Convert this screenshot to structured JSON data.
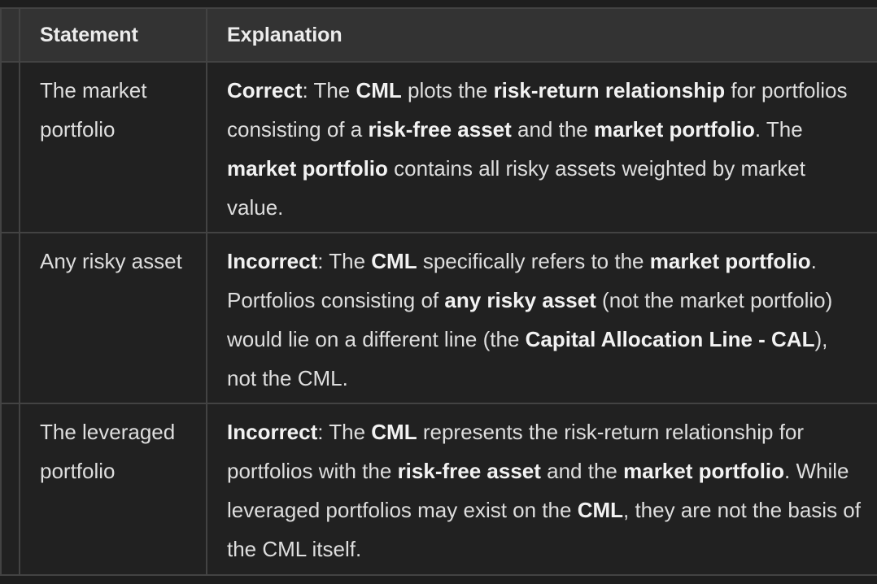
{
  "table": {
    "headers": {
      "statement": "Statement",
      "explanation": "Explanation"
    },
    "rows": [
      {
        "statement": "The market portfolio",
        "explanation": [
          {
            "t": "Correct",
            "b": true
          },
          {
            "t": ": The ",
            "b": false
          },
          {
            "t": "CML",
            "b": true
          },
          {
            "t": " plots the ",
            "b": false
          },
          {
            "t": "risk-return relationship",
            "b": true
          },
          {
            "t": " for portfolios consisting of a ",
            "b": false
          },
          {
            "t": "risk-free asset",
            "b": true
          },
          {
            "t": " and the ",
            "b": false
          },
          {
            "t": "market portfolio",
            "b": true
          },
          {
            "t": ". The ",
            "b": false
          },
          {
            "t": "market portfolio",
            "b": true
          },
          {
            "t": " contains all risky assets weighted by market value.",
            "b": false
          }
        ]
      },
      {
        "statement": "Any risky asset",
        "explanation": [
          {
            "t": "Incorrect",
            "b": true
          },
          {
            "t": ": The ",
            "b": false
          },
          {
            "t": "CML",
            "b": true
          },
          {
            "t": " specifically refers to the ",
            "b": false
          },
          {
            "t": "market portfolio",
            "b": true
          },
          {
            "t": ". Portfolios consisting of ",
            "b": false
          },
          {
            "t": "any risky asset",
            "b": true
          },
          {
            "t": " (not the market portfolio) would lie on a different line (the ",
            "b": false
          },
          {
            "t": "Capital Allocation Line - CAL",
            "b": true
          },
          {
            "t": "), not the CML.",
            "b": false
          }
        ]
      },
      {
        "statement": "The leveraged portfolio",
        "explanation": [
          {
            "t": "Incorrect",
            "b": true
          },
          {
            "t": ": The ",
            "b": false
          },
          {
            "t": "CML",
            "b": true
          },
          {
            "t": " represents the risk-return relationship for portfolios with the ",
            "b": false
          },
          {
            "t": "risk-free asset",
            "b": true
          },
          {
            "t": " and the ",
            "b": false
          },
          {
            "t": "market portfolio",
            "b": true
          },
          {
            "t": ". While leveraged portfolios may exist on the ",
            "b": false
          },
          {
            "t": "CML",
            "b": true
          },
          {
            "t": ", they are not the basis of the CML itself.",
            "b": false
          }
        ]
      }
    ]
  }
}
